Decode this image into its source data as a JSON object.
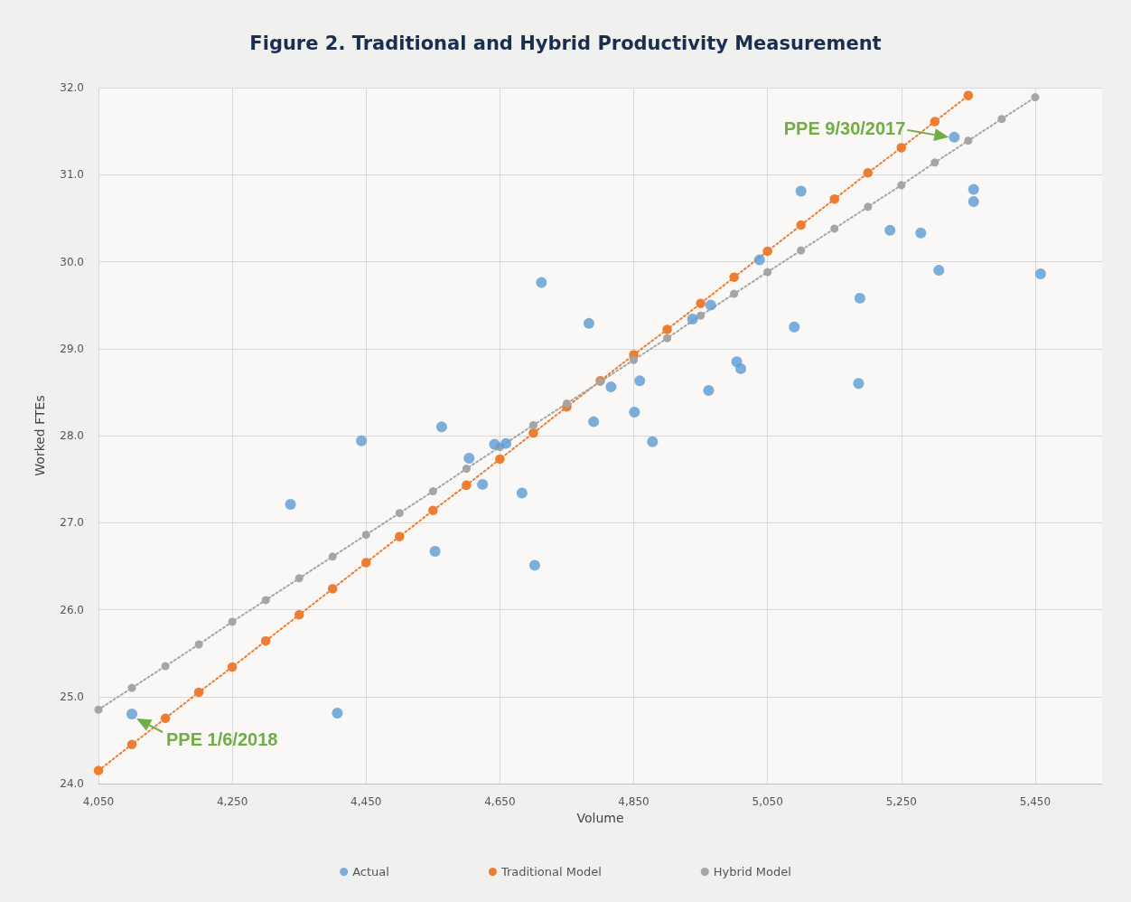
{
  "chart_data": {
    "type": "scatter",
    "title": "Figure 2. Traditional and Hybrid Productivity Measurement",
    "xlabel": "Volume",
    "ylabel": "Worked FTEs",
    "xlim": [
      4050,
      5550
    ],
    "xticks": [
      {
        "value": 4050,
        "label": "4,050"
      },
      {
        "value": 4250,
        "label": "4,250"
      },
      {
        "value": 4450,
        "label": "4,450"
      },
      {
        "value": 4650,
        "label": "4,650"
      },
      {
        "value": 4850,
        "label": "4,850"
      },
      {
        "value": 5050,
        "label": "5,050"
      },
      {
        "value": 5250,
        "label": "5,250"
      },
      {
        "value": 5450,
        "label": "5,450"
      }
    ],
    "ylim": [
      24,
      32
    ],
    "yticks": [
      {
        "value": 24,
        "label": "24.0"
      },
      {
        "value": 25,
        "label": "25.0"
      },
      {
        "value": 26,
        "label": "26.0"
      },
      {
        "value": 27,
        "label": "27.0"
      },
      {
        "value": 28,
        "label": "28.0"
      },
      {
        "value": 29,
        "label": "29.0"
      },
      {
        "value": 30,
        "label": "30.0"
      },
      {
        "value": 31,
        "label": "31.0"
      },
      {
        "value": 32,
        "label": "32.0"
      }
    ],
    "grid": true,
    "legend": "bottom",
    "marker": "circle",
    "series": [
      {
        "name": "Actual",
        "type": "scatter",
        "color": "#5b9bd5",
        "x": [
          4100,
          4337,
          4407,
          4443,
          4563,
          4553,
          4604,
          4624,
          4642,
          4659,
          4683,
          4702,
          4712,
          4783,
          4790,
          4816,
          4851,
          4859,
          4878,
          4938,
          4965,
          4962,
          5004,
          5010,
          5038,
          5090,
          5100,
          5186,
          5188,
          5233,
          5279,
          5306,
          5329,
          5358,
          5358,
          5458
        ],
        "values": [
          24.8,
          27.21,
          24.81,
          27.94,
          28.1,
          26.67,
          27.74,
          27.44,
          27.9,
          27.91,
          27.34,
          26.51,
          29.76,
          29.29,
          28.16,
          28.56,
          28.27,
          28.63,
          27.93,
          29.34,
          29.5,
          28.52,
          28.85,
          28.77,
          30.02,
          29.25,
          30.81,
          28.6,
          29.58,
          30.36,
          30.33,
          29.9,
          31.43,
          30.83,
          30.69,
          29.86
        ]
      },
      {
        "name": "Traditional Model",
        "type": "line",
        "line_style": "dotted",
        "color": "#ed7d31",
        "x": [
          4050,
          4100,
          4150,
          4200,
          4250,
          4300,
          4350,
          4400,
          4450,
          4500,
          4550,
          4600,
          4650,
          4700,
          4750,
          4800,
          4850,
          4900,
          4950,
          5000,
          5050,
          5100,
          5150,
          5200,
          5250,
          5300,
          5350
        ],
        "values": [
          24.15,
          24.45,
          24.75,
          25.05,
          25.34,
          25.64,
          25.94,
          26.24,
          26.54,
          26.84,
          27.14,
          27.43,
          27.73,
          28.03,
          28.33,
          28.63,
          28.93,
          29.22,
          29.52,
          29.82,
          30.12,
          30.42,
          30.72,
          31.02,
          31.31,
          31.61,
          31.91
        ]
      },
      {
        "name": "Hybrid Model",
        "type": "line",
        "line_style": "dotted",
        "color": "#a5a5a5",
        "x": [
          4050,
          4100,
          4150,
          4200,
          4250,
          4300,
          4350,
          4400,
          4450,
          4500,
          4550,
          4600,
          4650,
          4700,
          4750,
          4800,
          4850,
          4900,
          4950,
          5000,
          5050,
          5100,
          5150,
          5200,
          5250,
          5300,
          5350,
          5400,
          5450
        ],
        "values": [
          24.85,
          25.1,
          25.35,
          25.6,
          25.86,
          26.11,
          26.36,
          26.61,
          26.86,
          27.11,
          27.36,
          27.62,
          27.87,
          28.12,
          28.37,
          28.62,
          28.87,
          29.12,
          29.38,
          29.63,
          29.88,
          30.13,
          30.38,
          30.63,
          30.88,
          31.14,
          31.39,
          31.64,
          31.89
        ]
      }
    ],
    "annotations": [
      {
        "text": "PPE 9/30/2017",
        "x": 5329,
        "y": 31.43
      },
      {
        "text": "PPE 1/6/2018",
        "x": 4100,
        "y": 24.8
      }
    ]
  }
}
